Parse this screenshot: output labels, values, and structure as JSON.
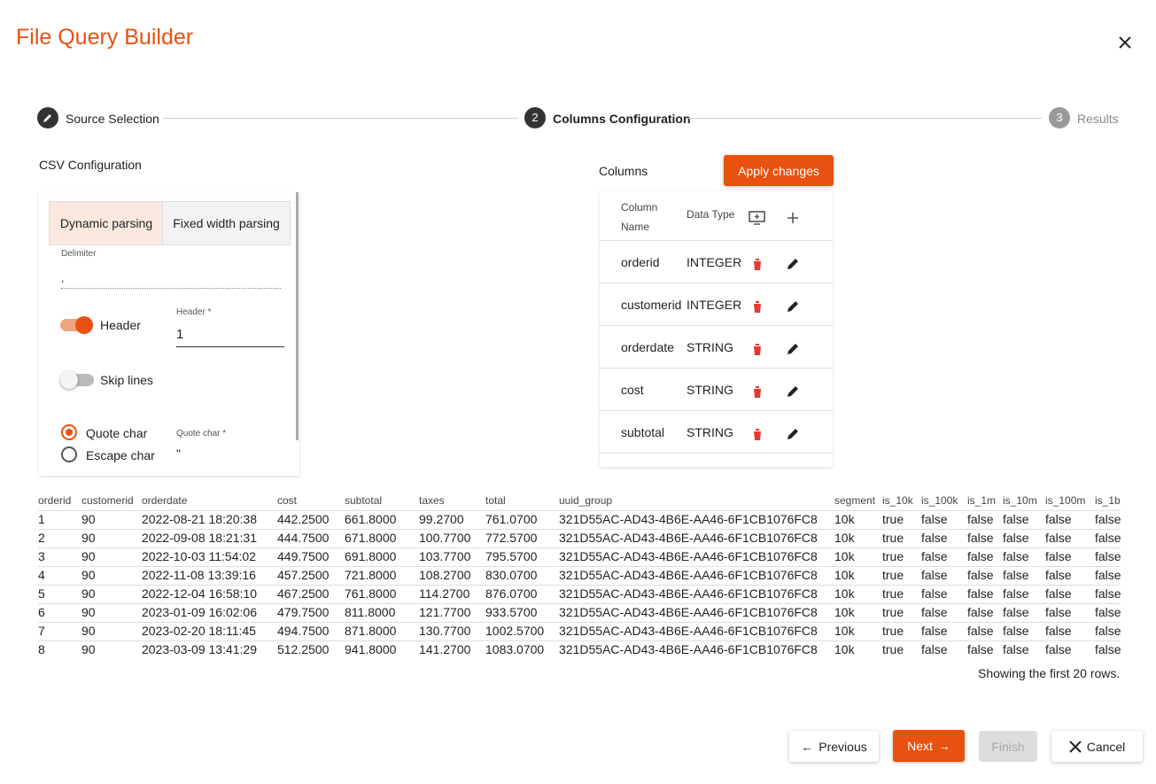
{
  "header": {
    "title": "File Query Builder"
  },
  "stepper": [
    {
      "label": "Source Selection"
    },
    {
      "number": 2,
      "label": "Columns Configuration"
    },
    {
      "number": 3,
      "label": "Results"
    }
  ],
  "csv_config": {
    "title": "CSV Configuration",
    "tabs": [
      "Dynamic parsing",
      "Fixed width parsing"
    ],
    "delimiter": {
      "label": "Delimiter",
      "value": ","
    },
    "header_toggle": "Header",
    "header_field": {
      "label": "Header *",
      "value": "1"
    },
    "skip_lines": "Skip lines",
    "radios": [
      "Quote char",
      "Escape char"
    ],
    "quote_field": {
      "label": "Quote char *",
      "value": "\""
    }
  },
  "columns": {
    "title": "Columns",
    "apply_button": "Apply changes",
    "headers": [
      "Column Name",
      "Data Type"
    ],
    "rows": [
      [
        "orderid",
        "INTEGER"
      ],
      [
        "customerid",
        "INTEGER"
      ],
      [
        "orderdate",
        "STRING"
      ],
      [
        "cost",
        "STRING"
      ],
      [
        "subtotal",
        "STRING"
      ]
    ]
  },
  "preview": {
    "headers": [
      "orderid",
      "customerid",
      "orderdate",
      "cost",
      "subtotal",
      "taxes",
      "total",
      "uuid_group",
      "segment",
      "is_10k",
      "is_100k",
      "is_1m",
      "is_10m",
      "is_100m",
      "is_1b"
    ],
    "rows": [
      [
        "1",
        "90",
        "2022-08-21 18:20:38",
        "442.2500",
        "661.8000",
        "99.2700",
        "761.0700",
        "321D55AC-AD43-4B6E-AA46-6F1CB1076FC8",
        "10k",
        "true",
        "false",
        "false",
        "false",
        "false",
        "false"
      ],
      [
        "2",
        "90",
        "2022-09-08 18:21:31",
        "444.7500",
        "671.8000",
        "100.7700",
        "772.5700",
        "321D55AC-AD43-4B6E-AA46-6F1CB1076FC8",
        "10k",
        "true",
        "false",
        "false",
        "false",
        "false",
        "false"
      ],
      [
        "3",
        "90",
        "2022-10-03 11:54:02",
        "449.7500",
        "691.8000",
        "103.7700",
        "795.5700",
        "321D55AC-AD43-4B6E-AA46-6F1CB1076FC8",
        "10k",
        "true",
        "false",
        "false",
        "false",
        "false",
        "false"
      ],
      [
        "4",
        "90",
        "2022-11-08 13:39:16",
        "457.2500",
        "721.8000",
        "108.2700",
        "830.0700",
        "321D55AC-AD43-4B6E-AA46-6F1CB1076FC8",
        "10k",
        "true",
        "false",
        "false",
        "false",
        "false",
        "false"
      ],
      [
        "5",
        "90",
        "2022-12-04 16:58:10",
        "467.2500",
        "761.8000",
        "114.2700",
        "876.0700",
        "321D55AC-AD43-4B6E-AA46-6F1CB1076FC8",
        "10k",
        "true",
        "false",
        "false",
        "false",
        "false",
        "false"
      ],
      [
        "6",
        "90",
        "2023-01-09 16:02:06",
        "479.7500",
        "811.8000",
        "121.7700",
        "933.5700",
        "321D55AC-AD43-4B6E-AA46-6F1CB1076FC8",
        "10k",
        "true",
        "false",
        "false",
        "false",
        "false",
        "false"
      ],
      [
        "7",
        "90",
        "2023-02-20 18:11:45",
        "494.7500",
        "871.8000",
        "130.7700",
        "1002.5700",
        "321D55AC-AD43-4B6E-AA46-6F1CB1076FC8",
        "10k",
        "true",
        "false",
        "false",
        "false",
        "false",
        "false"
      ],
      [
        "8",
        "90",
        "2023-03-09 13:41:29",
        "512.2500",
        "941.8000",
        "141.2700",
        "1083.0700",
        "321D55AC-AD43-4B6E-AA46-6F1CB1076FC8",
        "10k",
        "true",
        "false",
        "false",
        "false",
        "false",
        "false"
      ]
    ],
    "note": "Showing the first 20 rows."
  },
  "footer": {
    "previous": "Previous",
    "next": "Next",
    "finish": "Finish",
    "cancel": "Cancel"
  }
}
